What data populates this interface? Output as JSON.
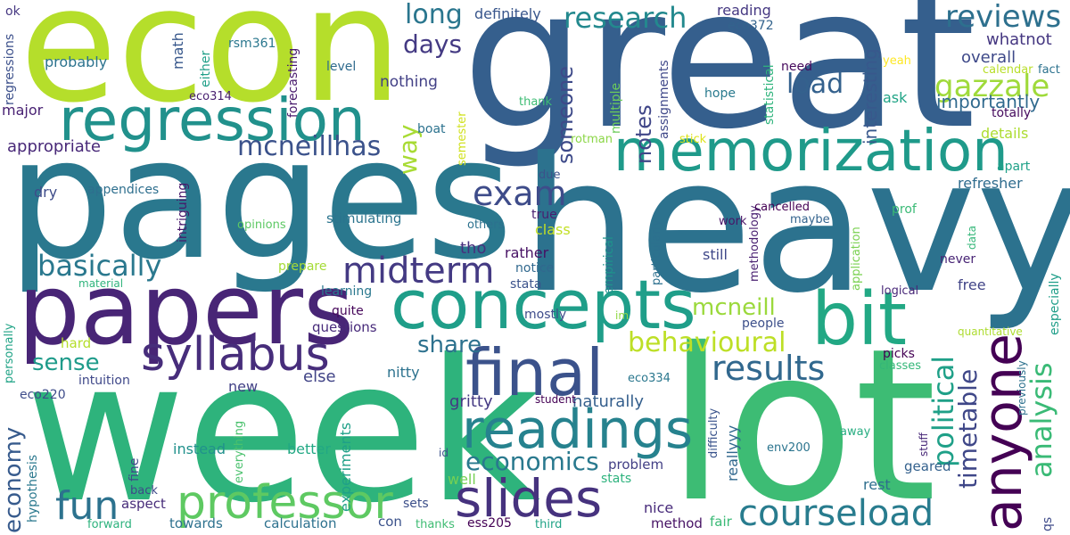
{
  "words": [
    {
      "text": "great",
      "color": "#355f8d"
    },
    {
      "text": "heavy",
      "color": "#2c728e"
    },
    {
      "text": "lot",
      "color": "#3dbc74"
    },
    {
      "text": "week",
      "color": "#2eb37c"
    },
    {
      "text": "pages",
      "color": "#2a788e"
    },
    {
      "text": "econ",
      "color": "#b5de2b"
    },
    {
      "text": "papers",
      "color": "#482576"
    },
    {
      "text": "regression",
      "color": "#21918c"
    },
    {
      "text": "concepts",
      "color": "#1f9e89"
    },
    {
      "text": "memorization",
      "color": "#1f9a8a"
    },
    {
      "text": "bit",
      "color": "#22a884"
    },
    {
      "text": "final",
      "color": "#3b528b"
    },
    {
      "text": "anyone",
      "color": "#440154"
    },
    {
      "text": "slides",
      "color": "#46327e"
    },
    {
      "text": "readings",
      "color": "#26828e"
    },
    {
      "text": "syllabus",
      "color": "#472d7b"
    },
    {
      "text": "professor",
      "color": "#5ec962"
    },
    {
      "text": "courseload",
      "color": "#287c8e"
    },
    {
      "text": "midterm",
      "color": "#443a83"
    },
    {
      "text": "results",
      "color": "#31688e"
    },
    {
      "text": "exam",
      "color": "#3e4c8a"
    },
    {
      "text": "reviews",
      "color": "#2d708e"
    },
    {
      "text": "gazzale",
      "color": "#9fda3a"
    },
    {
      "text": "basically",
      "color": "#2a788e"
    },
    {
      "text": "mcneillhas",
      "color": "#3b528b"
    },
    {
      "text": "research",
      "color": "#23898e"
    },
    {
      "text": "economics",
      "color": "#29798e"
    },
    {
      "text": "behavioural",
      "color": "#bddf26"
    },
    {
      "text": "political",
      "color": "#1fa088"
    },
    {
      "text": "analysis",
      "color": "#3aba76"
    },
    {
      "text": "timetable",
      "color": "#3f4788"
    },
    {
      "text": "fun",
      "color": "#2c728e"
    },
    {
      "text": "economy",
      "color": "#375b8d"
    },
    {
      "text": "sense",
      "color": "#1e9b8a"
    },
    {
      "text": "mcneill",
      "color": "#9bd93c"
    },
    {
      "text": "notes",
      "color": "#404688"
    },
    {
      "text": "someone",
      "color": "#3e4a89"
    },
    {
      "text": "share",
      "color": "#2d718e"
    },
    {
      "text": "load",
      "color": "#34618d"
    },
    {
      "text": "long",
      "color": "#2a768e"
    },
    {
      "text": "days",
      "color": "#443a83"
    },
    {
      "text": "way",
      "color": "#a8db34"
    },
    {
      "text": "importantly",
      "color": "#306a8e"
    },
    {
      "text": "interesting",
      "color": "#38588c"
    },
    {
      "text": "overall",
      "color": "#3e4989"
    },
    {
      "text": "whatnot",
      "color": "#453781"
    },
    {
      "text": "reading",
      "color": "#453882"
    },
    {
      "text": "definitely",
      "color": "#39568c"
    },
    {
      "text": "eco372",
      "color": "#33638d"
    },
    {
      "text": "rsm361",
      "color": "#2a778e"
    },
    {
      "text": "math",
      "color": "#38588c"
    },
    {
      "text": "probably",
      "color": "#2c738e"
    },
    {
      "text": "ok",
      "color": "#453781"
    },
    {
      "text": "regressions",
      "color": "#3c508b"
    },
    {
      "text": "either",
      "color": "#1f9f88"
    },
    {
      "text": "level",
      "color": "#2f6b8e"
    },
    {
      "text": "eco314",
      "color": "#481f70"
    },
    {
      "text": "forecasting",
      "color": "#481a6c"
    },
    {
      "text": "nothing",
      "color": "#424086"
    },
    {
      "text": "major",
      "color": "#482173"
    },
    {
      "text": "appropriate",
      "color": "#482878"
    },
    {
      "text": "boat",
      "color": "#2c728e"
    },
    {
      "text": "thank",
      "color": "#3dbc74"
    },
    {
      "text": "semester",
      "color": "#d0e11c"
    },
    {
      "text": "multiple",
      "color": "#6ccd5a"
    },
    {
      "text": "assignments",
      "color": "#3f4889"
    },
    {
      "text": "statistical",
      "color": "#2fb47c"
    },
    {
      "text": "rotman",
      "color": "#8bd646"
    },
    {
      "text": "stick",
      "color": "#dde318"
    },
    {
      "text": "need",
      "color": "#460a5d"
    },
    {
      "text": "calendar",
      "color": "#b8de29"
    },
    {
      "text": "fact",
      "color": "#2c728e"
    },
    {
      "text": "yeah",
      "color": "#fde725"
    },
    {
      "text": "ask",
      "color": "#20a486"
    },
    {
      "text": "totally",
      "color": "#460b5e"
    },
    {
      "text": "details",
      "color": "#addc30"
    },
    {
      "text": "apart",
      "color": "#1fa188"
    },
    {
      "text": "refresher",
      "color": "#2f6c8e"
    },
    {
      "text": "prof",
      "color": "#3aba76"
    },
    {
      "text": "hope",
      "color": "#297a8e"
    },
    {
      "text": "due",
      "color": "#3b528b"
    },
    {
      "text": "dry",
      "color": "#3e4c8a"
    },
    {
      "text": "appendices",
      "color": "#2e6f8e"
    },
    {
      "text": "intriguing",
      "color": "#48186a"
    },
    {
      "text": "stimulating",
      "color": "#2b748e"
    },
    {
      "text": "opinions",
      "color": "#5cc863"
    },
    {
      "text": "others",
      "color": "#2c718e"
    },
    {
      "text": "true",
      "color": "#481f70"
    },
    {
      "text": "class",
      "color": "#c2df23"
    },
    {
      "text": "tho",
      "color": "#472f7d"
    },
    {
      "text": "empirical",
      "color": "#20928c"
    },
    {
      "text": "particularly",
      "color": "#2d708e"
    },
    {
      "text": "still",
      "color": "#3f4889"
    },
    {
      "text": "methodology",
      "color": "#481f70"
    },
    {
      "text": "cancelled",
      "color": "#440154"
    },
    {
      "text": "work",
      "color": "#481467"
    },
    {
      "text": "maybe",
      "color": "#33638d"
    },
    {
      "text": "application",
      "color": "#7ad151"
    },
    {
      "text": "data",
      "color": "#35b779"
    },
    {
      "text": "never",
      "color": "#482475"
    },
    {
      "text": "free",
      "color": "#414487"
    },
    {
      "text": "logical",
      "color": "#482878"
    },
    {
      "text": "especially",
      "color": "#1f9e89"
    },
    {
      "text": "prepare",
      "color": "#a5db36"
    },
    {
      "text": "rather",
      "color": "#471164"
    },
    {
      "text": "notice",
      "color": "#31688e"
    },
    {
      "text": "stata",
      "color": "#3b528b"
    },
    {
      "text": "material",
      "color": "#2fb47c"
    },
    {
      "text": "learning",
      "color": "#2a788e"
    },
    {
      "text": "quite",
      "color": "#46075a"
    },
    {
      "text": "questions",
      "color": "#472a7a"
    },
    {
      "text": "im",
      "color": "#90d743"
    },
    {
      "text": "people",
      "color": "#3c4f8a"
    },
    {
      "text": "mostly",
      "color": "#3e4c8a"
    },
    {
      "text": "quantitative",
      "color": "#addc30"
    },
    {
      "text": "personally",
      "color": "#20a386"
    },
    {
      "text": "hard",
      "color": "#b5de2b"
    },
    {
      "text": "eco220",
      "color": "#3e4c8a"
    },
    {
      "text": "intuition",
      "color": "#3f4889"
    },
    {
      "text": "new",
      "color": "#424186"
    },
    {
      "text": "else",
      "color": "#414487"
    },
    {
      "text": "nitty",
      "color": "#2c728e"
    },
    {
      "text": "gritty",
      "color": "#443983"
    },
    {
      "text": "naturally",
      "color": "#355f8d"
    },
    {
      "text": "student",
      "color": "#440154"
    },
    {
      "text": "eco334",
      "color": "#2a778e"
    },
    {
      "text": "picks",
      "color": "#440154"
    },
    {
      "text": "classes",
      "color": "#35b779"
    },
    {
      "text": "previously",
      "color": "#2d718e"
    },
    {
      "text": "qs",
      "color": "#3e4a89"
    },
    {
      "text": "difficulty",
      "color": "#3a548c"
    },
    {
      "text": "reallyyy",
      "color": "#31688e"
    },
    {
      "text": "away",
      "color": "#27ad81"
    },
    {
      "text": "stuff",
      "color": "#482878"
    },
    {
      "text": "env200",
      "color": "#2b748e"
    },
    {
      "text": "geared",
      "color": "#34618d"
    },
    {
      "text": "rest",
      "color": "#2e6e8e"
    },
    {
      "text": "problem",
      "color": "#423f85"
    },
    {
      "text": "instead",
      "color": "#21918c"
    },
    {
      "text": "better",
      "color": "#22a884"
    },
    {
      "text": "everything",
      "color": "#4ac16d"
    },
    {
      "text": "experiments",
      "color": "#1fa088"
    },
    {
      "text": "id",
      "color": "#3b528b"
    },
    {
      "text": "well",
      "color": "#75d054"
    },
    {
      "text": "stats",
      "color": "#2db27d"
    },
    {
      "text": "fine",
      "color": "#3e4a89"
    },
    {
      "text": "hypothesis",
      "color": "#2a788e"
    },
    {
      "text": "back",
      "color": "#3e4989"
    },
    {
      "text": "aspect",
      "color": "#472c7a"
    },
    {
      "text": "forward",
      "color": "#2db27d"
    },
    {
      "text": "towards",
      "color": "#2d718e"
    },
    {
      "text": "calculation",
      "color": "#2d718e"
    },
    {
      "text": "con",
      "color": "#3b528b"
    },
    {
      "text": "sets",
      "color": "#3c4f8a"
    },
    {
      "text": "thanks",
      "color": "#3fbc73"
    },
    {
      "text": "ess205",
      "color": "#440154"
    },
    {
      "text": "third",
      "color": "#20a386"
    },
    {
      "text": "nice",
      "color": "#472a7a"
    },
    {
      "text": "method",
      "color": "#471365"
    },
    {
      "text": "fair",
      "color": "#3aba76"
    }
  ]
}
